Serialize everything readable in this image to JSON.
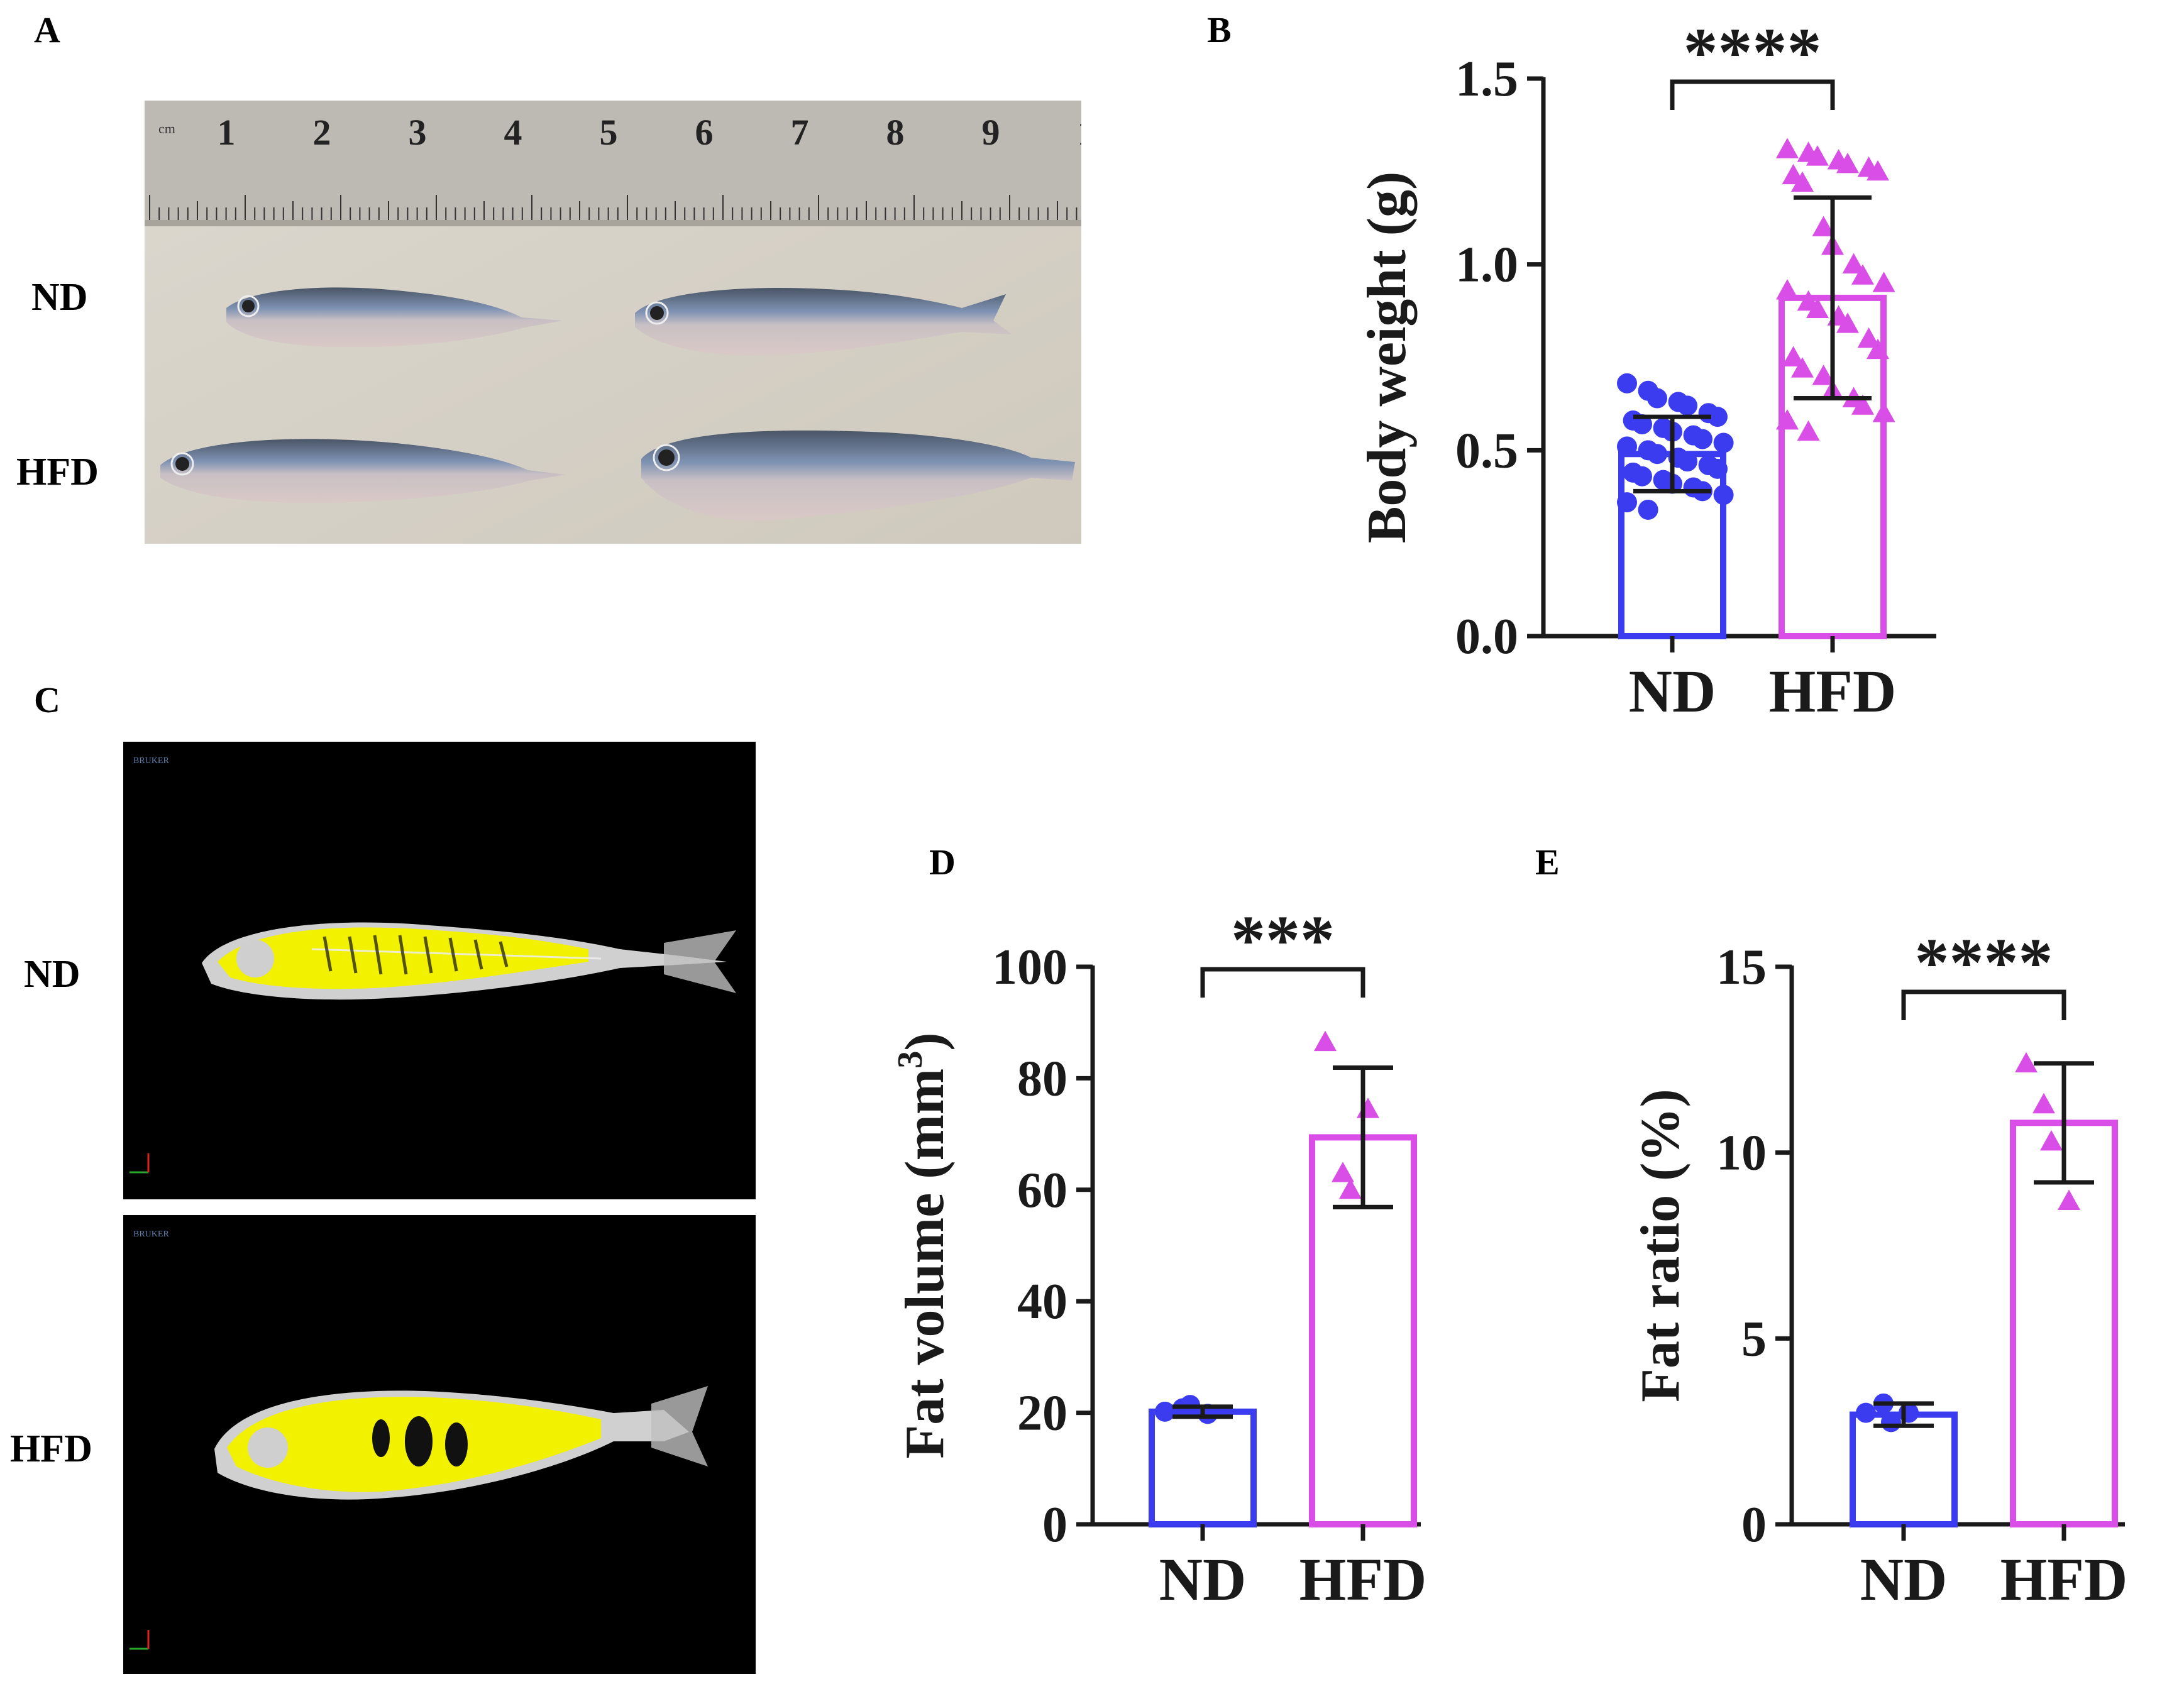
{
  "panels": {
    "A": {
      "letter": "A",
      "rows": [
        "ND",
        "HFD"
      ],
      "ruler_unit": "cm",
      "ruler_numbers": [
        "1",
        "2",
        "3",
        "4",
        "5",
        "6",
        "7",
        "8",
        "9",
        "1"
      ]
    },
    "B": {
      "letter": "B"
    },
    "C": {
      "letter": "C",
      "rows": [
        "ND",
        "HFD"
      ],
      "scanner_logo": "BRUKER"
    },
    "D": {
      "letter": "D"
    },
    "E": {
      "letter": "E"
    }
  },
  "colors": {
    "nd": "#3b3bf0",
    "hfd": "#d94ee6",
    "photo_bg": "#d8d3c8",
    "ruler": "#b9b7b1",
    "ct_bg": "#000000",
    "fat": "#f2f200",
    "bone": "#d9d9d9"
  },
  "chart_data": [
    {
      "id": "B",
      "type": "bar",
      "categories": [
        "ND",
        "HFD"
      ],
      "values": [
        0.49,
        0.91
      ],
      "error": [
        0.1,
        0.27
      ],
      "ylim": [
        0,
        1.5
      ],
      "yticks": [
        "0.0",
        "0.5",
        "1.0",
        "1.5"
      ],
      "ylabel": "Body weight (g)",
      "significance": "****",
      "points": {
        "ND": [
          0.68,
          0.66,
          0.64,
          0.63,
          0.62,
          0.6,
          0.59,
          0.58,
          0.57,
          0.56,
          0.55,
          0.54,
          0.53,
          0.52,
          0.51,
          0.5,
          0.49,
          0.48,
          0.47,
          0.46,
          0.45,
          0.44,
          0.43,
          0.42,
          0.41,
          0.4,
          0.39,
          0.38,
          0.36,
          0.34
        ],
        "HFD": [
          1.31,
          1.3,
          1.29,
          1.28,
          1.27,
          1.26,
          1.25,
          1.24,
          1.22,
          1.1,
          1.05,
          1.0,
          0.97,
          0.95,
          0.93,
          0.9,
          0.88,
          0.86,
          0.84,
          0.8,
          0.77,
          0.75,
          0.72,
          0.7,
          0.66,
          0.64,
          0.62,
          0.6,
          0.58,
          0.55
        ]
      }
    },
    {
      "id": "D",
      "type": "bar",
      "categories": [
        "ND",
        "HFD"
      ],
      "values": [
        20.2,
        69.4
      ],
      "error": [
        0.9,
        12.5
      ],
      "ylim": [
        0,
        100
      ],
      "yticks": [
        "0",
        "20",
        "40",
        "60",
        "80",
        "100"
      ],
      "ylabel": "Fat volume (mm",
      "ylabel_sup": "3",
      "ylabel_end": ")",
      "significance": "***",
      "points": {
        "ND": [
          20.2,
          20.8,
          21.4,
          19.8
        ],
        "HFD": [
          86.5,
          63.0,
          60.0,
          74.5
        ]
      }
    },
    {
      "id": "E",
      "type": "bar",
      "categories": [
        "ND",
        "HFD"
      ],
      "values": [
        2.95,
        10.8
      ],
      "error": [
        0.3,
        1.6
      ],
      "ylim": [
        0,
        15
      ],
      "yticks": [
        "0",
        "5",
        "10",
        "15"
      ],
      "ylabel": "Fat ratio (%)",
      "significance": "****",
      "points": {
        "ND": [
          3.0,
          3.25,
          2.75,
          3.0
        ],
        "HFD": [
          12.4,
          11.3,
          10.3,
          8.7
        ]
      }
    }
  ]
}
